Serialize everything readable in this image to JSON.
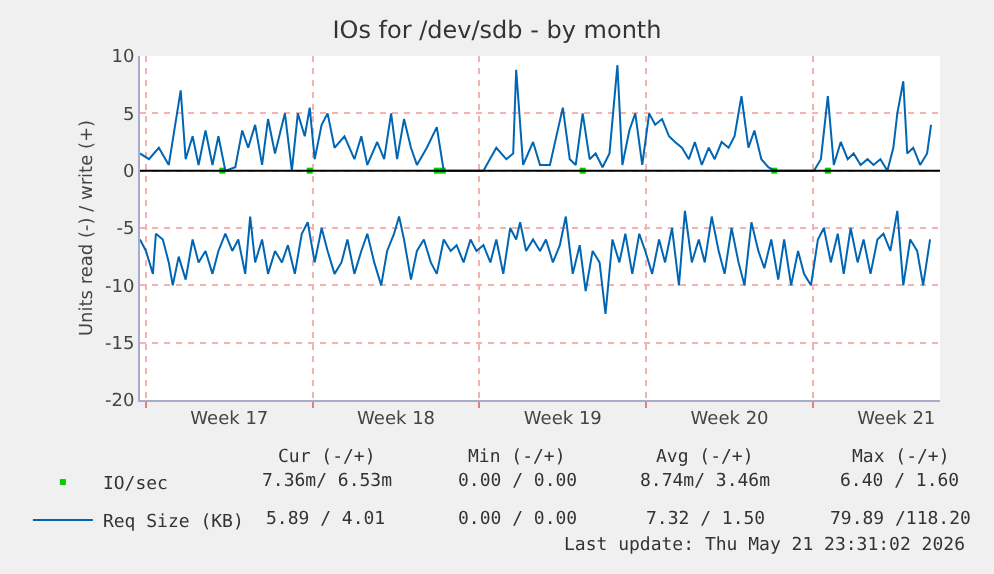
{
  "chart_data": {
    "type": "line",
    "title": "IOs for /dev/sdb - by month",
    "ylabel": "Units read (-) / write (+)",
    "xlim": [
      "2026-04-19T18:00",
      "2026-05-23T08:00"
    ],
    "xticks": [
      {
        "value": "2026-04-20",
        "label": null
      },
      {
        "value": "2026-04-23T12:00",
        "label": "Week 17"
      },
      {
        "value": "2026-04-27",
        "label": null
      },
      {
        "value": "2026-04-30T12:00",
        "label": "Week 18"
      },
      {
        "value": "2026-05-04",
        "label": null
      },
      {
        "value": "2026-05-07T12:00",
        "label": "Week 19"
      },
      {
        "value": "2026-05-11",
        "label": null
      },
      {
        "value": "2026-05-14T12:00",
        "label": "Week 20"
      },
      {
        "value": "2026-05-18",
        "label": null
      },
      {
        "value": "2026-05-21T12:00",
        "label": "Week 21"
      }
    ],
    "ylim": [
      -20,
      10
    ],
    "yticks": [
      -20,
      -15,
      -10,
      -5,
      0,
      5,
      10
    ],
    "grid": true,
    "legend": "bottom",
    "line_style": "solid",
    "marker": "none",
    "ref_lines": [
      {
        "axis": "y",
        "value": 0,
        "color": "#000000"
      }
    ],
    "series": [
      {
        "name": "IO/sec",
        "type": "scatter",
        "marker": "square",
        "color": "#00cc00",
        "x": [
          "2026-04-23T05:00",
          "2026-04-26T21:00",
          "2026-05-02T05:00",
          "2026-05-02T11:00",
          "2026-05-08T08:00",
          "2026-05-16T09:00",
          "2026-05-18T15:00"
        ],
        "values": [
          0,
          0,
          0,
          0,
          0,
          0,
          0
        ]
      },
      {
        "name": "Req Size (KB)",
        "color": "#0066b3",
        "x": [
          "2026-04-19T18:00",
          "2026-04-20T03:00",
          "2026-04-20T13:00",
          "2026-04-20T23:00",
          "2026-04-21T11:00",
          "2026-04-21T16:00",
          "2026-04-21T23:00",
          "2026-04-22T05:00",
          "2026-04-22T12:00",
          "2026-04-22T19:00",
          "2026-04-23T01:00",
          "2026-04-23T08:00",
          "2026-04-23T18:00",
          "2026-04-24T01:00",
          "2026-04-24T07:00",
          "2026-04-24T14:00",
          "2026-04-24T21:00",
          "2026-04-25T03:00",
          "2026-04-25T10:00",
          "2026-04-25T20:00",
          "2026-04-26T03:00",
          "2026-04-26T09:00",
          "2026-04-26T16:00",
          "2026-04-26T21:00",
          "2026-04-27T02:00",
          "2026-04-27T09:00",
          "2026-04-27T15:00",
          "2026-04-27T22:00",
          "2026-04-28T08:00",
          "2026-04-28T18:00",
          "2026-04-29T01:00",
          "2026-04-29T07:00",
          "2026-04-29T17:00",
          "2026-04-30T00:00",
          "2026-04-30T07:00",
          "2026-04-30T13:00",
          "2026-04-30T20:00",
          "2026-05-01T03:00",
          "2026-05-01T09:00",
          "2026-05-01T19:00",
          "2026-05-02T05:00",
          "2026-05-02T12:00",
          "2026-05-03T01:00",
          "2026-05-04T04:00",
          "2026-05-04T17:00",
          "2026-05-05T03:00",
          "2026-05-05T10:00",
          "2026-05-05T13:00",
          "2026-05-05T20:00",
          "2026-05-06T06:00",
          "2026-05-06T13:00",
          "2026-05-06T23:00",
          "2026-05-07T12:00",
          "2026-05-07T19:00",
          "2026-05-08T01:00",
          "2026-05-08T08:00",
          "2026-05-08T15:00",
          "2026-05-08T21:00",
          "2026-05-09T04:00",
          "2026-05-09T11:00",
          "2026-05-09T19:00",
          "2026-05-10T00:00",
          "2026-05-10T07:00",
          "2026-05-10T13:00",
          "2026-05-10T20:00",
          "2026-05-11T03:00",
          "2026-05-11T09:00",
          "2026-05-11T16:00",
          "2026-05-11T23:00",
          "2026-05-12T05:00",
          "2026-05-12T12:00",
          "2026-05-12T19:00",
          "2026-05-13T01:00",
          "2026-05-13T08:00",
          "2026-05-13T15:00",
          "2026-05-13T21:00",
          "2026-05-14T04:00",
          "2026-05-14T11:00",
          "2026-05-14T17:00",
          "2026-05-15T00:00",
          "2026-05-15T07:00",
          "2026-05-15T13:00",
          "2026-05-15T20:00",
          "2026-05-16T03:00",
          "2026-05-16T09:00",
          "2026-05-16T23:00",
          "2026-05-18T01:00",
          "2026-05-18T08:00",
          "2026-05-18T15:00",
          "2026-05-18T21:00",
          "2026-05-19T04:00",
          "2026-05-19T11:00",
          "2026-05-19T17:00",
          "2026-05-20T00:00",
          "2026-05-20T07:00",
          "2026-05-20T13:00",
          "2026-05-20T20:00",
          "2026-05-21T03:00",
          "2026-05-21T09:00",
          "2026-05-21T13:00",
          "2026-05-21T19:00",
          "2026-05-21T23:00",
          "2026-05-22T05:00",
          "2026-05-22T12:00",
          "2026-05-22T19:00",
          "2026-05-22T23:00"
        ],
        "values": [
          1.5,
          1,
          2,
          0.5,
          7,
          1,
          3,
          0.5,
          3.5,
          0.5,
          3,
          0,
          0.3,
          3.5,
          2,
          4,
          0.5,
          4.5,
          1.5,
          5,
          0,
          5,
          3,
          5.5,
          1,
          4,
          5,
          2,
          3,
          1,
          3,
          0.5,
          2.5,
          1,
          5,
          1,
          4.5,
          2,
          0.5,
          2,
          3.8,
          0,
          0,
          0,
          2,
          1,
          1.5,
          8.8,
          0.5,
          2.5,
          0.5,
          0.5,
          5.5,
          1,
          0.5,
          5,
          1,
          1.5,
          0.3,
          1.5,
          9.2,
          0.5,
          3.5,
          5,
          0.5,
          5,
          4,
          4.5,
          3,
          2.5,
          2,
          1,
          2.5,
          0.5,
          2,
          1,
          2.5,
          2,
          3,
          6.5,
          2,
          3.5,
          1,
          0.3,
          0,
          0,
          0,
          1,
          6.5,
          0.5,
          2.5,
          1,
          1.5,
          0.5,
          1,
          0.5,
          1,
          0,
          2,
          5,
          7.8,
          1.5,
          2,
          0.5,
          1.5,
          4
        ]
      },
      {
        "color": "#0066b3",
        "x": [
          "2026-04-19T18:00",
          "2026-04-20T00:00",
          "2026-04-20T07:00",
          "2026-04-20T10:00",
          "2026-04-20T17:00",
          "2026-04-20T23:00",
          "2026-04-21T03:00",
          "2026-04-21T09:00",
          "2026-04-21T16:00",
          "2026-04-21T23:00",
          "2026-04-22T05:00",
          "2026-04-22T12:00",
          "2026-04-22T19:00",
          "2026-04-23T01:00",
          "2026-04-23T08:00",
          "2026-04-23T15:00",
          "2026-04-23T21:00",
          "2026-04-24T04:00",
          "2026-04-24T09:00",
          "2026-04-24T14:00",
          "2026-04-24T21:00",
          "2026-04-25T03:00",
          "2026-04-25T10:00",
          "2026-04-25T17:00",
          "2026-04-25T23:00",
          "2026-04-26T06:00",
          "2026-04-26T13:00",
          "2026-04-26T19:00",
          "2026-04-27T02:00",
          "2026-04-27T09:00",
          "2026-04-27T15:00",
          "2026-04-27T22:00",
          "2026-04-28T05:00",
          "2026-04-28T11:00",
          "2026-04-28T18:00",
          "2026-04-29T01:00",
          "2026-04-29T07:00",
          "2026-04-29T14:00",
          "2026-04-29T21:00",
          "2026-04-30T03:00",
          "2026-04-30T10:00",
          "2026-04-30T15:00",
          "2026-04-30T20:00",
          "2026-05-01T03:00",
          "2026-05-01T09:00",
          "2026-05-01T16:00",
          "2026-05-01T23:00",
          "2026-05-02T05:00",
          "2026-05-02T12:00",
          "2026-05-02T19:00",
          "2026-05-03T01:00",
          "2026-05-03T08:00",
          "2026-05-03T15:00",
          "2026-05-03T21:00",
          "2026-05-04T04:00",
          "2026-05-04T11:00",
          "2026-05-04T17:00",
          "2026-05-05T00:00",
          "2026-05-05T07:00",
          "2026-05-05T13:00",
          "2026-05-05T17:00",
          "2026-05-05T23:00",
          "2026-05-06T06:00",
          "2026-05-06T13:00",
          "2026-05-06T19:00",
          "2026-05-07T02:00",
          "2026-05-07T09:00",
          "2026-05-07T15:00",
          "2026-05-07T22:00",
          "2026-05-08T05:00",
          "2026-05-08T11:00",
          "2026-05-08T18:00",
          "2026-05-09T01:00",
          "2026-05-09T07:00",
          "2026-05-09T14:00",
          "2026-05-09T21:00",
          "2026-05-10T03:00",
          "2026-05-10T10:00",
          "2026-05-10T17:00",
          "2026-05-10T23:00",
          "2026-05-11T06:00",
          "2026-05-11T13:00",
          "2026-05-11T19:00",
          "2026-05-12T02:00",
          "2026-05-12T09:00",
          "2026-05-12T15:00",
          "2026-05-12T22:00",
          "2026-05-13T05:00",
          "2026-05-13T11:00",
          "2026-05-13T18:00",
          "2026-05-14T01:00",
          "2026-05-14T07:00",
          "2026-05-14T14:00",
          "2026-05-14T21:00",
          "2026-05-15T03:00",
          "2026-05-15T10:00",
          "2026-05-15T17:00",
          "2026-05-15T23:00",
          "2026-05-16T06:00",
          "2026-05-16T13:00",
          "2026-05-16T19:00",
          "2026-05-17T02:00",
          "2026-05-17T09:00",
          "2026-05-17T15:00",
          "2026-05-17T22:00",
          "2026-05-18T05:00",
          "2026-05-18T11:00",
          "2026-05-18T18:00",
          "2026-05-19T01:00",
          "2026-05-19T07:00",
          "2026-05-19T14:00",
          "2026-05-19T21:00",
          "2026-05-20T03:00",
          "2026-05-20T10:00",
          "2026-05-20T17:00",
          "2026-05-20T23:00",
          "2026-05-21T06:00",
          "2026-05-21T13:00",
          "2026-05-21T19:00",
          "2026-05-22T02:00",
          "2026-05-22T09:00",
          "2026-05-22T15:00",
          "2026-05-22T22:00"
        ],
        "values": [
          -6,
          -7,
          -9,
          -5.5,
          -6,
          -8,
          -10,
          -7.5,
          -9.5,
          -6,
          -8,
          -7,
          -9,
          -7,
          -5.5,
          -7,
          -6,
          -9,
          -4,
          -8,
          -6,
          -9,
          -7,
          -8,
          -6.5,
          -9,
          -5.5,
          -4.5,
          -8,
          -5,
          -7,
          -9,
          -8,
          -6,
          -9,
          -7,
          -5.5,
          -8,
          -10,
          -7,
          -5.5,
          -4,
          -6,
          -9.5,
          -7,
          -6,
          -8,
          -9,
          -6,
          -7,
          -6.5,
          -8,
          -6,
          -7,
          -6.5,
          -8,
          -6,
          -9,
          -5,
          -6,
          -4.5,
          -7,
          -6,
          -7,
          -6,
          -8,
          -6.5,
          -4,
          -9,
          -6.5,
          -10.5,
          -7,
          -8,
          -12.5,
          -6,
          -8,
          -5.5,
          -9,
          -5.5,
          -7,
          -9,
          -6,
          -8,
          -5,
          -10,
          -3.5,
          -8,
          -6,
          -8,
          -4,
          -7,
          -9,
          -5,
          -8,
          -10,
          -4.5,
          -7,
          -8.5,
          -6,
          -9.5,
          -6,
          -10,
          -7,
          -9,
          -10,
          -6,
          -5,
          -8,
          -5.5,
          -9,
          -5,
          -8,
          -6,
          -9,
          -6,
          -5.5,
          -7,
          -3.5,
          -10,
          -6,
          -7,
          -10,
          -6
        ]
      }
    ],
    "annotations": [
      "Cur (-/+)",
      "Min (-/+)",
      "Avg (-/+)",
      "Max (-/+)",
      "7.36m/ 6.53m",
      "0.00 / 0.00",
      "8.74m/ 3.46m",
      "6.40 / 1.60",
      "5.89 / 4.01",
      "0.00 / 0.00",
      "7.32 / 1.50",
      "79.89 /118.20",
      "Last update: Thu May 21 23:31:02 2026"
    ]
  }
}
